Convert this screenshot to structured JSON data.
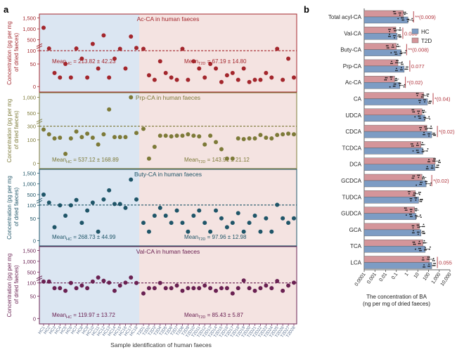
{
  "panel_labels": {
    "a": "a",
    "b": "b"
  },
  "colors": {
    "hc_bg": "#dbe6f2",
    "t2d_bg": "#f4e3e1",
    "ac": "#a3262c",
    "prp": "#7d7a38",
    "buty": "#1f5568",
    "val": "#6a2152",
    "hc_bar": "#7d9cc4",
    "t2d_bar": "#d4959a",
    "sig": "#b0323a"
  },
  "left": {
    "xlabel": "Sample identification of human faeces",
    "x_ticks": [
      "HC1",
      "HC2",
      "HC3",
      "HC4",
      "HC5",
      "HC6",
      "HC7",
      "HC8",
      "HC9",
      "HC10",
      "HC11",
      "HC12",
      "HC13",
      "HC14",
      "HC15",
      "HC16",
      "HC17",
      "HC18",
      "T2D1",
      "T2D2",
      "T2D3",
      "T2D4",
      "T2D5",
      "T2D6",
      "T2D7",
      "T2D8",
      "T2D9",
      "T2D10",
      "T2D11",
      "T2D12",
      "T2D13",
      "T2D14",
      "T2D15",
      "T2D16",
      "T2D17",
      "T2D18",
      "T2D19",
      "T2D20",
      "T2D21",
      "T2D22",
      "T2D23",
      "T2D24",
      "T2D25",
      "T2D26",
      "T2D27",
      "T2D28"
    ]
  },
  "chart_data": [
    {
      "type": "scatter",
      "title": "Ac-CA in human faeces",
      "ylabel": "Concentration (pg per mg of dried faeces)",
      "y_ticks": [
        "1,500",
        "1,000",
        "500",
        "100",
        "50",
        "0"
      ],
      "mean_hc_text": "Mean",
      "mean_hc_sub": "HC",
      "mean_hc_val": " = 213.82 ± 42.23",
      "mean_t2d_text": "Mean",
      "mean_t2d_sub": "T2D",
      "mean_t2d_val": " = 67.19 ± 14.80",
      "mean_level": 100,
      "values": [
        1050,
        180,
        30,
        20,
        50,
        20,
        180,
        70,
        20,
        350,
        40,
        700,
        20,
        70,
        170,
        40,
        650,
        200,
        170,
        25,
        15,
        60,
        30,
        20,
        15,
        170,
        15,
        60,
        40,
        20,
        50,
        40,
        10,
        25,
        30,
        15,
        40,
        10,
        15,
        15,
        30,
        20,
        170,
        15,
        70,
        20
      ]
    },
    {
      "type": "scatter",
      "title": "Prp-CA in human faeces",
      "ylabel": "Concentration (pg per mg of dried faeces)",
      "y_ticks": [
        "1,000",
        "500",
        "300",
        "100",
        "0"
      ],
      "mean_hc_text": "Mean",
      "mean_hc_sub": "HC",
      "mean_hc_val": " = 537.12 ± 168.89",
      "mean_t2d_text": "Mean",
      "mean_t2d_sub": "T2D",
      "mean_t2d_val": " = 143.91 ± 21.12",
      "mean_level": 300,
      "values": [
        250,
        180,
        120,
        130,
        40,
        120,
        220,
        140,
        190,
        130,
        80,
        180,
        620,
        140,
        140,
        140,
        1000,
        200,
        260,
        20,
        70,
        160,
        160,
        150,
        160,
        160,
        180,
        160,
        150,
        80,
        160,
        90,
        60,
        20,
        20,
        120,
        110,
        120,
        120,
        170,
        130,
        120,
        170,
        180,
        190,
        180
      ]
    },
    {
      "type": "scatter",
      "title": "Buty-CA in human faeces",
      "ylabel": "Concentration (pg per mg of dried faeces)",
      "y_ticks": [
        "1,500",
        "1,000",
        "500",
        "100",
        "50",
        "0"
      ],
      "mean_hc_text": "Mean",
      "mean_hc_sub": "HC",
      "mean_hc_val": " = 268.73 ± 44.99",
      "mean_t2d_text": "Mean",
      "mean_t2d_sub": "T2D",
      "mean_t2d_val": " = 97.96 ± 12.98",
      "mean_level": 110,
      "values": [
        500,
        200,
        30,
        100,
        60,
        100,
        300,
        40,
        80,
        200,
        20,
        320,
        700,
        150,
        150,
        90,
        1200,
        320,
        40,
        20,
        60,
        90,
        60,
        40,
        80,
        40,
        20,
        60,
        80,
        40,
        20,
        80,
        50,
        30,
        40,
        70,
        20,
        40,
        60,
        20,
        50,
        20,
        120,
        50,
        40,
        50
      ]
    },
    {
      "type": "scatter",
      "title": "Val-CA in human faeces",
      "ylabel": "Concentration (pg per mg of dried faeces)",
      "y_ticks": [
        "1,500",
        "1,000",
        "500",
        "100",
        "50",
        "0"
      ],
      "mean_hc_text": "Mean",
      "mean_hc_sub": "HC",
      "mean_hc_val": " = 119.97 ± 13.72",
      "mean_t2d_text": "Mean",
      "mean_t2d_sub": "T2D",
      "mean_t2d_val": " = 85.43 ± 5.87",
      "mean_level": 100,
      "values": [
        150,
        150,
        80,
        80,
        70,
        100,
        80,
        90,
        80,
        150,
        300,
        180,
        110,
        70,
        90,
        110,
        300,
        100,
        60,
        80,
        80,
        100,
        80,
        80,
        90,
        70,
        80,
        80,
        80,
        90,
        80,
        70,
        80,
        80,
        60,
        80,
        190,
        80,
        70,
        80,
        90,
        80,
        170,
        70,
        90,
        110
      ]
    },
    {
      "type": "bar",
      "orientation": "horizontal",
      "xlabel_line1": "The concentration of BA",
      "xlabel_line2": "(ng per mg of dried faeces)",
      "x_scale": "log",
      "x_ticks": [
        "0.0001",
        "0.001",
        "0.01",
        "0.1",
        "1",
        "10",
        "100",
        "1,000",
        "10,000"
      ],
      "legend": [
        "HC",
        "T2D"
      ],
      "categories": [
        "Total acyl-CA",
        "Val-CA",
        "Buty-CA",
        "Prp-CA",
        "Ac-CA",
        "CA",
        "UDCA",
        "CDCA",
        "TCDCA",
        "DCA",
        "GCDCA",
        "TUDCA",
        "GUDCA",
        "GCA",
        "TCA",
        "LCA"
      ],
      "series": [
        {
          "name": "HC",
          "values": [
            1.2,
            0.12,
            0.27,
            0.54,
            0.21,
            80,
            45,
            200,
            30,
            400,
            60,
            12,
            7,
            20,
            50,
            200
          ]
        },
        {
          "name": "T2D",
          "values": [
            0.45,
            0.09,
            0.1,
            0.14,
            0.07,
            35,
            25,
            70,
            20,
            420,
            25,
            6,
            5,
            14,
            30,
            120
          ]
        }
      ],
      "significance": [
        "**(0.009)",
        "0.088",
        "**(0.008)",
        "0.077",
        "*(0.02)",
        "*(0.04)",
        "",
        "*(0.02)",
        "",
        "",
        "*(0.02)",
        "",
        "",
        "",
        "",
        "0.055"
      ]
    }
  ]
}
